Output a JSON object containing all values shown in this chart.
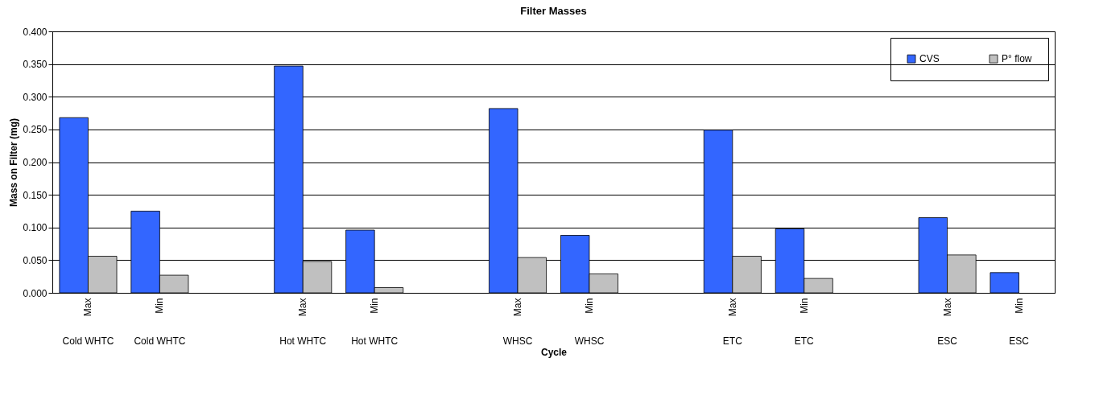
{
  "chart_data": {
    "type": "bar",
    "title": "Filter Masses",
    "xlabel": "Cycle",
    "ylabel": "Mass on Filter (mg)",
    "categories": [
      "Max\nCold WHTC",
      "Min\nCold WHTC",
      null,
      "Max\nHot WHTC",
      "Min\nHot WHTC",
      null,
      "Max\nWHSC",
      "Min\nWHSC",
      null,
      "Max\nETC",
      "Min\nETC",
      null,
      "Max\nESC",
      "Min\nESC"
    ],
    "series": [
      {
        "name": "CVS",
        "color": "#3366ff",
        "values": [
          0.268,
          0.125,
          null,
          0.347,
          0.096,
          null,
          0.282,
          0.088,
          null,
          0.249,
          0.098,
          null,
          0.115,
          0.031
        ]
      },
      {
        "name": "P° flow",
        "color": "#c0c0c0",
        "values": [
          0.056,
          0.027,
          null,
          0.048,
          0.008,
          null,
          0.054,
          0.029,
          null,
          0.056,
          0.022,
          null,
          0.058,
          null
        ]
      }
    ],
    "ylim": [
      0,
      0.4
    ],
    "yticks": [
      {
        "value": 0,
        "label": "0.000"
      },
      {
        "value": 0.05,
        "label": "0.050"
      },
      {
        "value": 0.1,
        "label": "0.100"
      },
      {
        "value": 0.15,
        "label": "0.150"
      },
      {
        "value": 0.2,
        "label": "0.200"
      },
      {
        "value": 0.25,
        "label": "0.250"
      },
      {
        "value": 0.3,
        "label": "0.300"
      },
      {
        "value": 0.35,
        "label": "0.350"
      },
      {
        "value": 0.4,
        "label": "0.400"
      }
    ],
    "grid": "y",
    "legend": "top right"
  }
}
